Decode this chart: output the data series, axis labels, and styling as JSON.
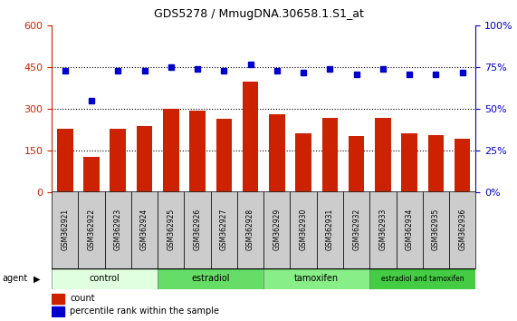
{
  "title": "GDS5278 / MmugDNA.30658.1.S1_at",
  "samples": [
    "GSM362921",
    "GSM362922",
    "GSM362923",
    "GSM362924",
    "GSM362925",
    "GSM362926",
    "GSM362927",
    "GSM362928",
    "GSM362929",
    "GSM362930",
    "GSM362931",
    "GSM362932",
    "GSM362933",
    "GSM362934",
    "GSM362935",
    "GSM362936"
  ],
  "count_values": [
    230,
    128,
    228,
    240,
    300,
    295,
    265,
    400,
    280,
    213,
    270,
    202,
    268,
    213,
    208,
    193
  ],
  "percentile_values": [
    73,
    55,
    73,
    73,
    75,
    74,
    73,
    77,
    73,
    72,
    74,
    71,
    74,
    71,
    71,
    72
  ],
  "groups": [
    {
      "label": "control",
      "start": 0,
      "end": 4,
      "color": "#e0ffe0"
    },
    {
      "label": "estradiol",
      "start": 4,
      "end": 8,
      "color": "#66dd66"
    },
    {
      "label": "tamoxifen",
      "start": 8,
      "end": 12,
      "color": "#88ee88"
    },
    {
      "label": "estradiol and tamoxifen",
      "start": 12,
      "end": 16,
      "color": "#44cc44"
    }
  ],
  "bar_color": "#cc2200",
  "dot_color": "#0000cc",
  "left_ylim": [
    0,
    600
  ],
  "right_ylim": [
    0,
    100
  ],
  "left_yticks": [
    0,
    150,
    300,
    450,
    600
  ],
  "right_yticks": [
    0,
    25,
    50,
    75,
    100
  ],
  "grid_values": [
    150,
    300,
    450
  ],
  "agent_label": "agent",
  "legend_count": "count",
  "legend_percentile": "percentile rank within the sample",
  "bg_color": "#cccccc",
  "plot_bg": "#ffffff",
  "label_box_color": "#cccccc"
}
